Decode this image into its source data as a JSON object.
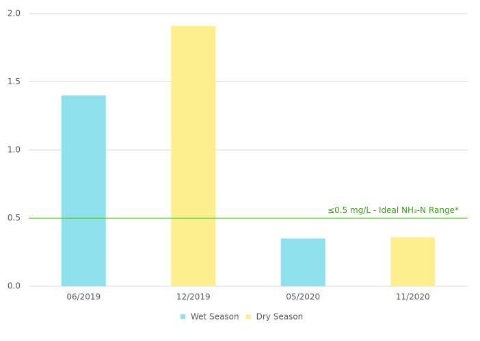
{
  "chart_data": {
    "type": "bar",
    "categories": [
      "06/2019",
      "12/2019",
      "05/2020",
      "11/2020"
    ],
    "series": [
      {
        "name": "Wet Season",
        "color": "#8ee0ec",
        "values": [
          1.4,
          null,
          0.35,
          null
        ]
      },
      {
        "name": "Dry Season",
        "color": "#fdef8e",
        "values": [
          null,
          1.91,
          null,
          0.36
        ]
      }
    ],
    "ylim": [
      0,
      2
    ],
    "yticks": [
      {
        "value": 0,
        "label": "0.0"
      },
      0.5,
      {
        "value": 1,
        "label": "1.0"
      },
      1.5,
      {
        "value": 2,
        "label": "2.0"
      }
    ],
    "grid": true,
    "legend": "bottom",
    "reference_line": {
      "value": 0.5,
      "label": "≤0.5 mg/L - Ideal NH₃-N Range*",
      "color": "#3a9e1a"
    }
  }
}
